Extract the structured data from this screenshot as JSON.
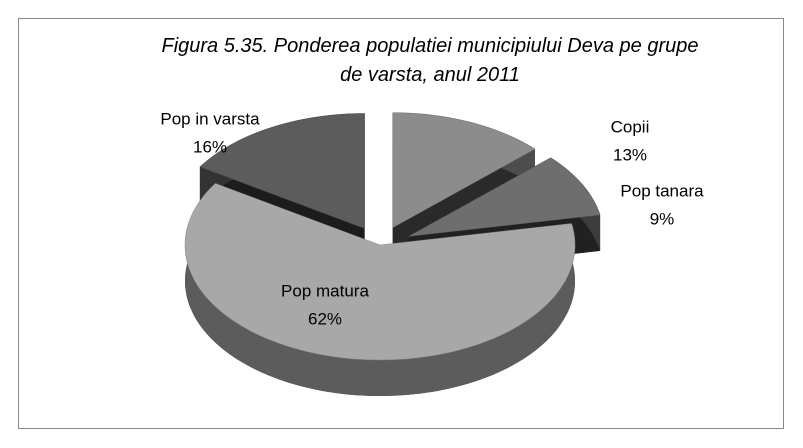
{
  "chart_data": {
    "type": "pie",
    "title": "Figura 5.35. Ponderea populatiei municipiului Deva pe grupe de varsta, anul 2011",
    "categories": [
      "Copii",
      "Pop tanara",
      "Pop matura",
      "Pop in varsta"
    ],
    "values": [
      13,
      9,
      62,
      16
    ],
    "value_labels": [
      "13%",
      "9%",
      "62%",
      "16%"
    ],
    "colors": [
      "#8c8c8c",
      "#6e6e6e",
      "#a8a8a8",
      "#5c5c5c"
    ]
  }
}
